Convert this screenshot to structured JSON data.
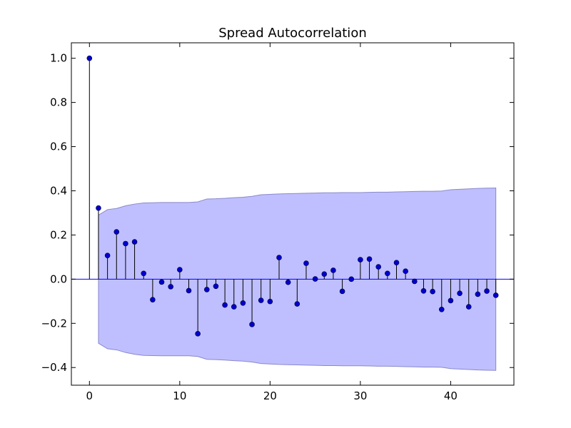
{
  "chart_data": {
    "type": "stem",
    "title": "Spread Autocorrelation",
    "xlabel": "",
    "ylabel": "",
    "xlim": [
      -2,
      47
    ],
    "ylim": [
      -0.48,
      1.07
    ],
    "x_ticks": [
      0,
      10,
      20,
      30,
      40
    ],
    "y_ticks": [
      -0.4,
      -0.2,
      0.0,
      0.2,
      0.4,
      0.6,
      0.8,
      1.0
    ],
    "y_tick_labels": [
      "−0.4",
      "−0.2",
      "0.0",
      "0.2",
      "0.4",
      "0.6",
      "0.8",
      "1.0"
    ],
    "lags": [
      0,
      1,
      2,
      3,
      4,
      5,
      6,
      7,
      8,
      9,
      10,
      11,
      12,
      13,
      14,
      15,
      16,
      17,
      18,
      19,
      20,
      21,
      22,
      23,
      24,
      25,
      26,
      27,
      28,
      29,
      30,
      31,
      32,
      33,
      34,
      35,
      36,
      37,
      38,
      39,
      40,
      41,
      42,
      43,
      44,
      45
    ],
    "values": [
      1.0,
      0.322,
      0.107,
      0.214,
      0.161,
      0.169,
      0.026,
      -0.093,
      -0.013,
      -0.034,
      0.043,
      -0.052,
      -0.247,
      -0.047,
      -0.032,
      -0.117,
      -0.125,
      -0.108,
      -0.205,
      -0.096,
      -0.101,
      0.098,
      -0.014,
      -0.112,
      0.072,
      0.001,
      0.023,
      0.04,
      -0.055,
      0.0,
      0.088,
      0.091,
      0.056,
      0.026,
      0.075,
      0.036,
      -0.01,
      -0.053,
      -0.056,
      -0.137,
      -0.097,
      -0.064,
      -0.125,
      -0.068,
      -0.054,
      -0.073
    ],
    "confidence_band": [
      null,
      0.29,
      0.315,
      0.32,
      0.332,
      0.34,
      0.345,
      0.346,
      0.347,
      0.347,
      0.347,
      0.347,
      0.35,
      0.363,
      0.364,
      0.366,
      0.369,
      0.371,
      0.375,
      0.382,
      0.384,
      0.386,
      0.387,
      0.388,
      0.389,
      0.39,
      0.391,
      0.391,
      0.392,
      0.392,
      0.392,
      0.393,
      0.394,
      0.394,
      0.395,
      0.396,
      0.397,
      0.398,
      0.398,
      0.399,
      0.405,
      0.407,
      0.409,
      0.411,
      0.412,
      0.413
    ],
    "grid": false,
    "colors": {
      "marker": "#0000cc",
      "stem": "#000000",
      "zero_line": "#0000ff",
      "band_fill": "#bfbfff",
      "band_edge": "#8888cc"
    }
  }
}
